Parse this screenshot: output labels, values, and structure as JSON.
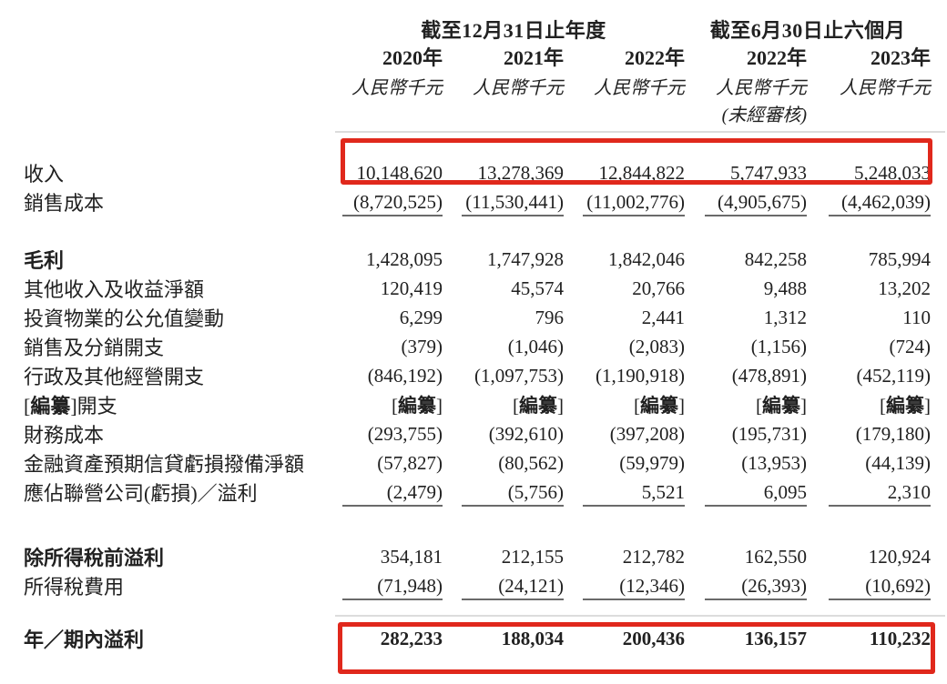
{
  "colors": {
    "highlight_red": "#e0281c",
    "text": "#212121",
    "rule_light": "#dcdcdc",
    "rule_dark": "#6a6a6a"
  },
  "table": {
    "group_headers": [
      {
        "label": "截至12月31日止年度",
        "span": 3
      },
      {
        "label": "截至6月30日止六個月",
        "span": 2
      }
    ],
    "year_headers": [
      "2020年",
      "2021年",
      "2022年",
      "2022年",
      "2023年"
    ],
    "unit_headers": [
      "人民幣千元",
      "人民幣千元",
      "人民幣千元",
      "人民幣千元",
      "人民幣千元"
    ],
    "unaudited_note": "(未經審核)",
    "rows": [
      {
        "label": "收入",
        "values": [
          "10,148,620",
          "13,278,369",
          "12,844,822",
          "5,747,933",
          "5,248,033"
        ],
        "highlighted": true
      },
      {
        "label": "銷售成本",
        "values": [
          "(8,720,525)",
          "(11,530,441)",
          "(11,002,776)",
          "(4,905,675)",
          "(4,462,039)"
        ],
        "underline": true
      },
      {
        "label": "毛利",
        "bold_label": true,
        "section": 1,
        "values": [
          "1,428,095",
          "1,747,928",
          "1,842,046",
          "842,258",
          "785,994"
        ]
      },
      {
        "label": "其他收入及收益淨額",
        "values": [
          "120,419",
          "45,574",
          "20,766",
          "9,488",
          "13,202"
        ]
      },
      {
        "label": "投資物業的公允值變動",
        "values": [
          "6,299",
          "796",
          "2,441",
          "1,312",
          "110"
        ]
      },
      {
        "label": "銷售及分銷開支",
        "values": [
          "(379)",
          "(1,046)",
          "(2,083)",
          "(1,156)",
          "(724)"
        ]
      },
      {
        "label": "行政及其他經營開支",
        "values": [
          "(846,192)",
          "(1,097,753)",
          "(1,190,918)",
          "(478,891)",
          "(452,119)"
        ]
      },
      {
        "label": "[編纂]開支",
        "values": [
          "[編纂]",
          "[編纂]",
          "[編纂]",
          "[編纂]",
          "[編纂]"
        ]
      },
      {
        "label": "財務成本",
        "values": [
          "(293,755)",
          "(392,610)",
          "(397,208)",
          "(195,731)",
          "(179,180)"
        ]
      },
      {
        "label": "金融資產預期信貸虧損撥備淨額",
        "values": [
          "(57,827)",
          "(80,562)",
          "(59,979)",
          "(13,953)",
          "(44,139)"
        ]
      },
      {
        "label": "應佔聯營公司(虧損)／溢利",
        "values": [
          "(2,479)",
          "(5,756)",
          "5,521",
          "6,095",
          "2,310"
        ],
        "underline": true
      },
      {
        "label": "除所得稅前溢利",
        "bold_label": true,
        "section": 2,
        "values": [
          "354,181",
          "212,155",
          "212,782",
          "162,550",
          "120,924"
        ]
      },
      {
        "label": "所得稅費用",
        "values": [
          "(71,948)",
          "(24,121)",
          "(12,346)",
          "(26,393)",
          "(10,692)"
        ],
        "underline": true
      },
      {
        "label": "年／期內溢利",
        "bold_label": true,
        "bold_values": true,
        "section": 3,
        "values": [
          "282,233",
          "188,034",
          "200,436",
          "136,157",
          "110,232"
        ],
        "highlighted": true
      }
    ]
  }
}
